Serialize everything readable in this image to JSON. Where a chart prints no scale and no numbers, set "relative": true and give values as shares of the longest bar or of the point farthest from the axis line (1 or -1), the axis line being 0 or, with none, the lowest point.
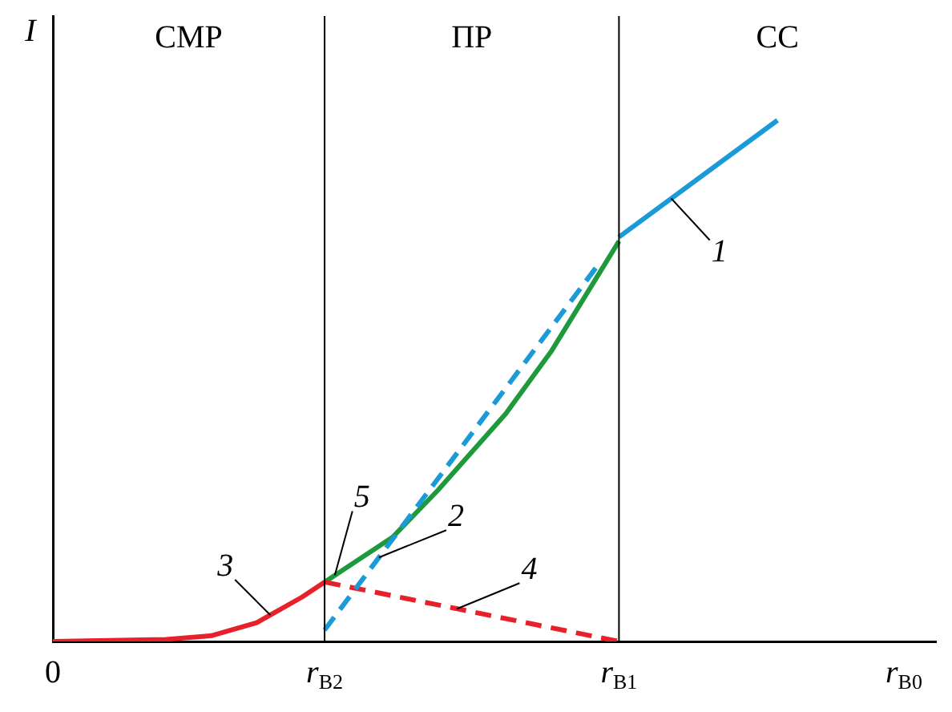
{
  "chart_data": {
    "type": "line",
    "relative": true,
    "xlabel": "r$_{B0}$",
    "ylabel": "I",
    "categories": [
      "0",
      null,
      null,
      null,
      null,
      null,
      null,
      null,
      null,
      null,
      null,
      null,
      "r$_{B2}$",
      null,
      null,
      null,
      null,
      null,
      null,
      null,
      null,
      null,
      null,
      null,
      null,
      "r$_{B1}$",
      null,
      null,
      null,
      null,
      null,
      null,
      null,
      null,
      null,
      null,
      null,
      null,
      null,
      null
    ],
    "grid": false,
    "legend": false,
    "marker": "none",
    "series": [
      {
        "name": "1",
        "color": "#1a9ad6",
        "values": [
          null,
          null,
          null,
          null,
          null,
          null,
          null,
          null,
          null,
          null,
          null,
          null,
          null,
          null,
          null,
          null,
          null,
          null,
          null,
          null,
          null,
          null,
          null,
          null,
          null,
          0.776,
          null,
          null,
          null,
          null,
          null,
          null,
          1,
          null,
          null,
          null,
          null,
          null,
          null,
          null
        ]
      },
      {
        "name": "2",
        "color": "#1a9ad6",
        "line_style": "dashed",
        "values": [
          null,
          null,
          null,
          null,
          null,
          null,
          null,
          null,
          null,
          null,
          null,
          null,
          0.022,
          null,
          null,
          null,
          null,
          null,
          null,
          null,
          null,
          null,
          null,
          null,
          0.718,
          null,
          null,
          null,
          null,
          null,
          null,
          null,
          null,
          null,
          null,
          null,
          null,
          null,
          null,
          null
        ]
      },
      {
        "name": "3",
        "color": "#e8202a",
        "values": [
          0,
          null,
          null,
          null,
          null,
          0.004,
          null,
          0.011,
          null,
          0.036,
          null,
          0.085,
          0.114,
          null,
          null,
          null,
          null,
          null,
          null,
          null,
          null,
          null,
          null,
          null,
          null,
          null,
          null,
          null,
          null,
          null,
          null,
          null,
          null,
          null,
          null,
          null,
          null,
          null,
          null,
          null
        ]
      },
      {
        "name": "4",
        "color": "#e8202a",
        "line_style": "dashed",
        "values": [
          null,
          null,
          null,
          null,
          null,
          null,
          null,
          null,
          null,
          null,
          null,
          null,
          0.114,
          null,
          null,
          null,
          null,
          null,
          null,
          null,
          null,
          null,
          null,
          null,
          null,
          0,
          null,
          null,
          null,
          null,
          null,
          null,
          null,
          null,
          null,
          null,
          null,
          null,
          null,
          null
        ]
      },
      {
        "name": "5",
        "color": "#1e9a3c",
        "values": [
          null,
          null,
          null,
          null,
          null,
          null,
          null,
          null,
          null,
          null,
          null,
          null,
          0.114,
          null,
          null,
          0.2,
          null,
          0.29,
          null,
          null,
          0.437,
          null,
          0.556,
          null,
          null,
          0.768,
          null,
          null,
          null,
          null,
          null,
          null,
          null,
          null,
          null,
          null,
          null,
          null,
          null,
          null
        ]
      }
    ],
    "ref_lines": [
      {
        "axis": "x",
        "value": "r$_{B2}$",
        "color": "#000000"
      },
      {
        "axis": "x",
        "value": "r$_{B1}$",
        "color": "#000000"
      }
    ],
    "annotations": [
      "СМР",
      "ПР",
      "СС"
    ]
  }
}
